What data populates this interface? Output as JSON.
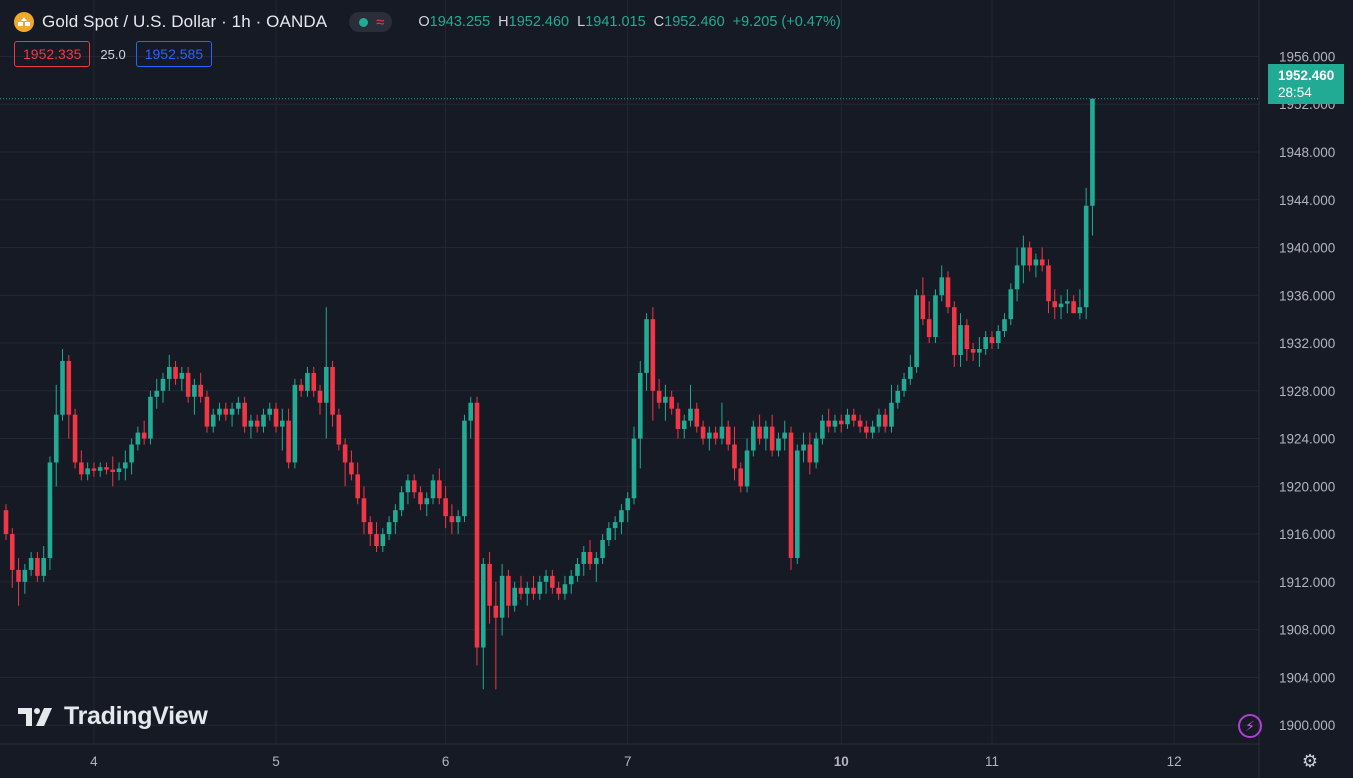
{
  "header": {
    "title": "Gold Spot / U.S. Dollar · 1h · OANDA",
    "ohlc": [
      {
        "k": "O",
        "v": "1943.255"
      },
      {
        "k": "H",
        "v": "1952.460"
      },
      {
        "k": "L",
        "v": "1941.015"
      },
      {
        "k": "C",
        "v": "1952.460"
      }
    ],
    "change": "+9.205 (+0.47%)"
  },
  "trade": {
    "sell": "1952.335",
    "spread": "25.0",
    "buy": "1952.585"
  },
  "last_price": {
    "price": "1952.460",
    "countdown": "28:54"
  },
  "brand": {
    "name": "TradingView"
  },
  "colors": {
    "bg": "#161a25",
    "up": "#22ab94",
    "down": "#f23645",
    "grid": "#232733",
    "axis_text": "#b2b5be"
  },
  "icons": [
    "symbol-logo-icon",
    "status-dot-icon",
    "waves-icon",
    "lightning-icon",
    "settings-icon"
  ],
  "chart_data": {
    "type": "candlestick",
    "title": "Gold Spot / U.S. Dollar · 1h · OANDA",
    "ylim": [
      1898,
      1958
    ],
    "yticks": [
      1900,
      1904,
      1908,
      1912,
      1916,
      1920,
      1924,
      1928,
      1932,
      1936,
      1940,
      1944,
      1948,
      1952,
      1956
    ],
    "ytick_labels": [
      "1900.000",
      "1904.000",
      "1908.000",
      "1912.000",
      "1916.000",
      "1920.000",
      "1924.000",
      "1928.000",
      "1932.000",
      "1936.000",
      "1940.000",
      "1944.000",
      "1948.000",
      "1952.000",
      "1956.000"
    ],
    "xticks": [
      {
        "label": "4",
        "index": 14
      },
      {
        "label": "5",
        "index": 43
      },
      {
        "label": "6",
        "index": 70
      },
      {
        "label": "7",
        "index": 99
      },
      {
        "label": "10",
        "index": 133
      },
      {
        "label": "11",
        "index": 157
      },
      {
        "label": "12",
        "index": 186
      }
    ],
    "grid": true,
    "current_price": 1952.46,
    "candles": [
      [
        1918.0,
        1918.5,
        1915.5,
        1916.0
      ],
      [
        1916.0,
        1916.5,
        1911.5,
        1913.0
      ],
      [
        1913.0,
        1914.0,
        1910.0,
        1912.0
      ],
      [
        1912.0,
        1913.5,
        1911.0,
        1913.0
      ],
      [
        1913.0,
        1914.5,
        1912.5,
        1914.0
      ],
      [
        1914.0,
        1914.5,
        1912.0,
        1912.5
      ],
      [
        1912.5,
        1915.0,
        1912.0,
        1914.0
      ],
      [
        1914.0,
        1922.5,
        1913.0,
        1922.0
      ],
      [
        1922.0,
        1928.5,
        1920.0,
        1926.0
      ],
      [
        1926.0,
        1931.5,
        1925.5,
        1930.5
      ],
      [
        1930.5,
        1931.0,
        1924.0,
        1926.0
      ],
      [
        1926.0,
        1926.5,
        1921.5,
        1922.0
      ],
      [
        1922.0,
        1923.0,
        1920.5,
        1921.0
      ],
      [
        1921.0,
        1922.0,
        1920.5,
        1921.5
      ],
      [
        1921.5,
        1922.0,
        1920.8,
        1921.3
      ],
      [
        1921.3,
        1922.0,
        1920.8,
        1921.6
      ],
      [
        1921.6,
        1922.0,
        1921.0,
        1921.4
      ],
      [
        1921.4,
        1922.5,
        1920.0,
        1921.2
      ],
      [
        1921.2,
        1922.0,
        1920.5,
        1921.5
      ],
      [
        1921.5,
        1923.0,
        1920.5,
        1922.0
      ],
      [
        1922.0,
        1924.0,
        1921.0,
        1923.5
      ],
      [
        1923.5,
        1925.0,
        1923.0,
        1924.5
      ],
      [
        1924.5,
        1925.5,
        1923.5,
        1924.0
      ],
      [
        1924.0,
        1928.0,
        1923.5,
        1927.5
      ],
      [
        1927.5,
        1929.0,
        1926.5,
        1928.0
      ],
      [
        1928.0,
        1929.5,
        1927.0,
        1929.0
      ],
      [
        1929.0,
        1931.0,
        1928.0,
        1930.0
      ],
      [
        1930.0,
        1930.5,
        1928.5,
        1929.0
      ],
      [
        1929.0,
        1930.0,
        1928.0,
        1929.5
      ],
      [
        1929.5,
        1930.0,
        1927.0,
        1927.5
      ],
      [
        1927.5,
        1929.0,
        1926.0,
        1928.5
      ],
      [
        1928.5,
        1929.5,
        1927.0,
        1927.5
      ],
      [
        1927.5,
        1928.0,
        1924.5,
        1925.0
      ],
      [
        1925.0,
        1926.5,
        1924.5,
        1926.0
      ],
      [
        1926.0,
        1927.0,
        1925.5,
        1926.5
      ],
      [
        1926.5,
        1927.0,
        1925.5,
        1926.0
      ],
      [
        1926.0,
        1927.0,
        1925.0,
        1926.5
      ],
      [
        1926.5,
        1927.5,
        1926.0,
        1927.0
      ],
      [
        1927.0,
        1927.5,
        1924.5,
        1925.0
      ],
      [
        1925.0,
        1926.0,
        1924.0,
        1925.5
      ],
      [
        1925.5,
        1926.0,
        1924.5,
        1925.0
      ],
      [
        1925.0,
        1926.5,
        1924.5,
        1926.0
      ],
      [
        1926.0,
        1927.0,
        1925.5,
        1926.5
      ],
      [
        1926.5,
        1927.0,
        1924.5,
        1925.0
      ],
      [
        1925.0,
        1926.5,
        1923.0,
        1925.5
      ],
      [
        1925.5,
        1926.5,
        1921.5,
        1922.0
      ],
      [
        1922.0,
        1929.0,
        1921.5,
        1928.5
      ],
      [
        1928.5,
        1929.0,
        1927.5,
        1928.0
      ],
      [
        1928.0,
        1930.0,
        1927.5,
        1929.5
      ],
      [
        1929.5,
        1930.0,
        1927.5,
        1928.0
      ],
      [
        1928.0,
        1928.5,
        1926.0,
        1927.0
      ],
      [
        1927.0,
        1935.0,
        1924.0,
        1930.0
      ],
      [
        1930.0,
        1930.5,
        1925.0,
        1926.0
      ],
      [
        1926.0,
        1926.5,
        1923.0,
        1923.5
      ],
      [
        1923.5,
        1924.0,
        1920.0,
        1922.0
      ],
      [
        1922.0,
        1923.0,
        1920.5,
        1921.0
      ],
      [
        1921.0,
        1922.0,
        1918.5,
        1919.0
      ],
      [
        1919.0,
        1920.0,
        1916.0,
        1917.0
      ],
      [
        1917.0,
        1917.5,
        1915.0,
        1916.0
      ],
      [
        1916.0,
        1917.0,
        1914.5,
        1915.0
      ],
      [
        1915.0,
        1916.5,
        1914.5,
        1916.0
      ],
      [
        1916.0,
        1917.5,
        1915.5,
        1917.0
      ],
      [
        1917.0,
        1918.5,
        1916.0,
        1918.0
      ],
      [
        1918.0,
        1920.0,
        1917.5,
        1919.5
      ],
      [
        1919.5,
        1921.0,
        1918.5,
        1920.5
      ],
      [
        1920.5,
        1921.0,
        1919.0,
        1919.5
      ],
      [
        1919.5,
        1920.0,
        1918.0,
        1918.5
      ],
      [
        1918.5,
        1919.5,
        1917.5,
        1919.0
      ],
      [
        1919.0,
        1921.0,
        1918.5,
        1920.5
      ],
      [
        1920.5,
        1921.5,
        1918.5,
        1919.0
      ],
      [
        1919.0,
        1920.0,
        1916.5,
        1917.5
      ],
      [
        1917.5,
        1918.5,
        1916.0,
        1917.0
      ],
      [
        1917.0,
        1918.0,
        1916.0,
        1917.5
      ],
      [
        1917.5,
        1926.0,
        1917.0,
        1925.5
      ],
      [
        1925.5,
        1927.5,
        1924.0,
        1927.0
      ],
      [
        1927.0,
        1927.5,
        1905.0,
        1906.5
      ],
      [
        1906.5,
        1914.0,
        1903.0,
        1913.5
      ],
      [
        1913.5,
        1914.5,
        1908.5,
        1910.0
      ],
      [
        1910.0,
        1912.0,
        1903.0,
        1909.0
      ],
      [
        1909.0,
        1913.5,
        1907.5,
        1912.5
      ],
      [
        1912.5,
        1913.0,
        1909.0,
        1910.0
      ],
      [
        1910.0,
        1912.0,
        1909.5,
        1911.5
      ],
      [
        1911.5,
        1912.5,
        1910.5,
        1911.0
      ],
      [
        1911.0,
        1912.0,
        1910.0,
        1911.5
      ],
      [
        1911.5,
        1912.5,
        1910.5,
        1911.0
      ],
      [
        1911.0,
        1912.5,
        1910.5,
        1912.0
      ],
      [
        1912.0,
        1913.0,
        1911.0,
        1912.5
      ],
      [
        1912.5,
        1913.0,
        1911.0,
        1911.5
      ],
      [
        1911.5,
        1912.0,
        1910.5,
        1911.0
      ],
      [
        1911.0,
        1912.5,
        1910.5,
        1911.8
      ],
      [
        1911.8,
        1913.0,
        1911.0,
        1912.5
      ],
      [
        1912.5,
        1914.0,
        1912.0,
        1913.5
      ],
      [
        1913.5,
        1915.0,
        1912.5,
        1914.5
      ],
      [
        1914.5,
        1915.5,
        1913.0,
        1913.5
      ],
      [
        1913.5,
        1914.5,
        1912.0,
        1914.0
      ],
      [
        1914.0,
        1916.0,
        1913.5,
        1915.5
      ],
      [
        1915.5,
        1917.0,
        1915.0,
        1916.5
      ],
      [
        1916.5,
        1917.5,
        1915.5,
        1917.0
      ],
      [
        1917.0,
        1918.5,
        1916.0,
        1918.0
      ],
      [
        1918.0,
        1919.5,
        1917.0,
        1919.0
      ],
      [
        1919.0,
        1925.0,
        1918.5,
        1924.0
      ],
      [
        1924.0,
        1930.5,
        1921.5,
        1929.5
      ],
      [
        1929.5,
        1934.5,
        1928.0,
        1934.0
      ],
      [
        1934.0,
        1935.0,
        1925.5,
        1928.0
      ],
      [
        1928.0,
        1929.0,
        1926.5,
        1927.0
      ],
      [
        1927.0,
        1928.5,
        1925.5,
        1927.5
      ],
      [
        1927.5,
        1928.0,
        1926.0,
        1926.5
      ],
      [
        1926.5,
        1927.0,
        1924.0,
        1924.8
      ],
      [
        1924.8,
        1926.0,
        1924.0,
        1925.5
      ],
      [
        1925.5,
        1928.5,
        1925.0,
        1926.5
      ],
      [
        1926.5,
        1927.0,
        1924.5,
        1925.0
      ],
      [
        1925.0,
        1925.5,
        1923.5,
        1924.0
      ],
      [
        1924.0,
        1925.0,
        1923.0,
        1924.5
      ],
      [
        1924.5,
        1925.0,
        1923.5,
        1924.0
      ],
      [
        1924.0,
        1927.0,
        1923.5,
        1925.0
      ],
      [
        1925.0,
        1925.5,
        1923.0,
        1923.5
      ],
      [
        1923.5,
        1925.0,
        1920.5,
        1921.5
      ],
      [
        1921.5,
        1922.0,
        1919.5,
        1920.0
      ],
      [
        1920.0,
        1924.0,
        1919.5,
        1923.0
      ],
      [
        1923.0,
        1925.5,
        1922.5,
        1925.0
      ],
      [
        1925.0,
        1926.0,
        1923.5,
        1924.0
      ],
      [
        1924.0,
        1925.5,
        1923.0,
        1925.0
      ],
      [
        1925.0,
        1926.0,
        1922.5,
        1923.0
      ],
      [
        1923.0,
        1924.5,
        1922.5,
        1924.0
      ],
      [
        1924.0,
        1925.5,
        1923.0,
        1924.5
      ],
      [
        1924.5,
        1925.0,
        1913.0,
        1914.0
      ],
      [
        1914.0,
        1923.5,
        1913.5,
        1923.0
      ],
      [
        1923.0,
        1924.5,
        1922.0,
        1923.5
      ],
      [
        1923.5,
        1924.5,
        1921.0,
        1922.0
      ],
      [
        1922.0,
        1924.5,
        1921.5,
        1924.0
      ],
      [
        1924.0,
        1926.0,
        1923.5,
        1925.5
      ],
      [
        1925.5,
        1926.5,
        1924.5,
        1925.0
      ],
      [
        1925.0,
        1926.0,
        1924.5,
        1925.5
      ],
      [
        1925.5,
        1926.0,
        1924.5,
        1925.2
      ],
      [
        1925.2,
        1926.5,
        1924.8,
        1926.0
      ],
      [
        1926.0,
        1926.5,
        1925.0,
        1925.5
      ],
      [
        1925.5,
        1926.0,
        1924.5,
        1925.0
      ],
      [
        1925.0,
        1925.5,
        1924.0,
        1924.5
      ],
      [
        1924.5,
        1925.5,
        1924.0,
        1925.0
      ],
      [
        1925.0,
        1926.5,
        1924.5,
        1926.0
      ],
      [
        1926.0,
        1926.5,
        1924.5,
        1925.0
      ],
      [
        1925.0,
        1928.5,
        1924.5,
        1927.0
      ],
      [
        1927.0,
        1928.5,
        1926.5,
        1928.0
      ],
      [
        1928.0,
        1929.5,
        1927.5,
        1929.0
      ],
      [
        1929.0,
        1931.0,
        1928.5,
        1930.0
      ],
      [
        1930.0,
        1936.5,
        1929.5,
        1936.0
      ],
      [
        1936.0,
        1937.5,
        1933.5,
        1934.0
      ],
      [
        1934.0,
        1935.5,
        1932.0,
        1932.5
      ],
      [
        1932.5,
        1936.5,
        1932.0,
        1936.0
      ],
      [
        1936.0,
        1938.5,
        1935.5,
        1937.5
      ],
      [
        1937.5,
        1938.0,
        1934.5,
        1935.0
      ],
      [
        1935.0,
        1935.5,
        1930.0,
        1931.0
      ],
      [
        1931.0,
        1934.5,
        1930.0,
        1933.5
      ],
      [
        1933.5,
        1934.0,
        1930.5,
        1931.5
      ],
      [
        1931.5,
        1932.0,
        1930.5,
        1931.2
      ],
      [
        1931.2,
        1932.5,
        1930.0,
        1931.5
      ],
      [
        1931.5,
        1933.0,
        1931.0,
        1932.5
      ],
      [
        1932.5,
        1933.0,
        1931.5,
        1932.0
      ],
      [
        1932.0,
        1933.5,
        1931.5,
        1933.0
      ],
      [
        1933.0,
        1934.5,
        1932.5,
        1934.0
      ],
      [
        1934.0,
        1937.0,
        1933.5,
        1936.5
      ],
      [
        1936.5,
        1940.0,
        1935.5,
        1938.5
      ],
      [
        1938.5,
        1941.0,
        1937.0,
        1940.0
      ],
      [
        1940.0,
        1940.5,
        1938.0,
        1938.5
      ],
      [
        1938.5,
        1939.5,
        1937.5,
        1939.0
      ],
      [
        1939.0,
        1940.0,
        1938.0,
        1938.5
      ],
      [
        1938.5,
        1939.0,
        1934.5,
        1935.5
      ],
      [
        1935.5,
        1936.5,
        1934.0,
        1935.0
      ],
      [
        1935.0,
        1936.0,
        1934.0,
        1935.3
      ],
      [
        1935.3,
        1936.5,
        1934.5,
        1935.5
      ],
      [
        1935.5,
        1936.0,
        1934.5,
        1934.5
      ],
      [
        1934.5,
        1936.5,
        1934.0,
        1935.0
      ],
      [
        1935.0,
        1945.0,
        1934.0,
        1943.5
      ],
      [
        1943.5,
        1952.5,
        1941.0,
        1952.46
      ]
    ]
  }
}
